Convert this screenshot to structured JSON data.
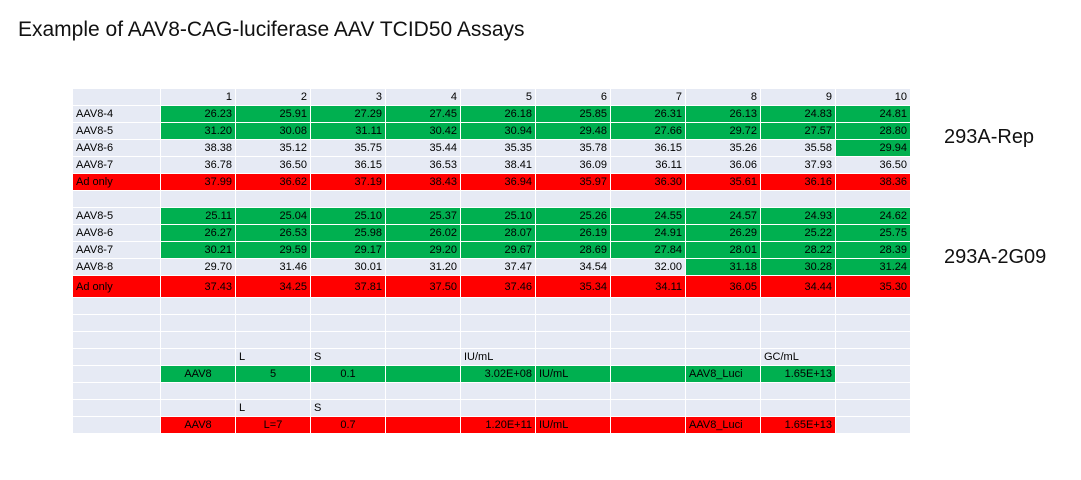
{
  "title": "Example of AAV8-CAG-luciferase AAV TCID50 Assays",
  "labels": {
    "rep": "293A-Rep",
    "g09": "293A-2G09"
  },
  "columns": [
    "1",
    "2",
    "3",
    "4",
    "5",
    "6",
    "7",
    "8",
    "9",
    "10"
  ],
  "section1": [
    {
      "label": "AAV8-4",
      "values": [
        "26.23",
        "25.91",
        "27.29",
        "27.45",
        "26.18",
        "25.85",
        "26.31",
        "26.13",
        "24.83",
        "24.81"
      ],
      "colors": [
        "g",
        "g",
        "g",
        "g",
        "g",
        "g",
        "g",
        "g",
        "g",
        "g"
      ]
    },
    {
      "label": "AAV8-5",
      "values": [
        "31.20",
        "30.08",
        "31.11",
        "30.42",
        "30.94",
        "29.48",
        "27.66",
        "29.72",
        "27.57",
        "28.80"
      ],
      "colors": [
        "g",
        "g",
        "g",
        "g",
        "g",
        "g",
        "g",
        "g",
        "g",
        "g"
      ]
    },
    {
      "label": "AAV8-6",
      "values": [
        "38.38",
        "35.12",
        "35.75",
        "35.44",
        "35.35",
        "35.78",
        "36.15",
        "35.26",
        "35.58",
        "29.94"
      ],
      "colors": [
        "l",
        "l",
        "l",
        "l",
        "l",
        "l",
        "l",
        "l",
        "l",
        "g"
      ]
    },
    {
      "label": "AAV8-7",
      "values": [
        "36.78",
        "36.50",
        "36.15",
        "36.53",
        "38.41",
        "36.09",
        "36.11",
        "36.06",
        "37.93",
        "36.50"
      ],
      "colors": [
        "l",
        "l",
        "l",
        "l",
        "l",
        "l",
        "l",
        "l",
        "l",
        "l"
      ]
    },
    {
      "label": "Ad only",
      "values": [
        "37.99",
        "36.62",
        "37.19",
        "38.43",
        "36.94",
        "35.97",
        "36.30",
        "35.61",
        "36.16",
        "38.36"
      ],
      "colors": [
        "r",
        "r",
        "r",
        "r",
        "r",
        "r",
        "r",
        "r",
        "r",
        "r"
      ],
      "labelColor": "r"
    }
  ],
  "section2": [
    {
      "label": "AAV8-5",
      "values": [
        "25.11",
        "25.04",
        "25.10",
        "25.37",
        "25.10",
        "25.26",
        "24.55",
        "24.57",
        "24.93",
        "24.62"
      ],
      "colors": [
        "g",
        "g",
        "g",
        "g",
        "g",
        "g",
        "g",
        "g",
        "g",
        "g"
      ]
    },
    {
      "label": "AAV8-6",
      "values": [
        "26.27",
        "26.53",
        "25.98",
        "26.02",
        "28.07",
        "26.19",
        "24.91",
        "26.29",
        "25.22",
        "25.75"
      ],
      "colors": [
        "g",
        "g",
        "g",
        "g",
        "g",
        "g",
        "g",
        "g",
        "g",
        "g"
      ]
    },
    {
      "label": "AAV8-7",
      "values": [
        "30.21",
        "29.59",
        "29.17",
        "29.20",
        "29.67",
        "28.69",
        "27.84",
        "28.01",
        "28.22",
        "28.39"
      ],
      "colors": [
        "g",
        "g",
        "g",
        "g",
        "g",
        "g",
        "g",
        "g",
        "g",
        "g"
      ]
    },
    {
      "label": "AAV8-8",
      "values": [
        "29.70",
        "31.46",
        "30.01",
        "31.20",
        "37.47",
        "34.54",
        "32.00",
        "31.18",
        "30.28",
        "31.24"
      ],
      "colors": [
        "l",
        "l",
        "l",
        "l",
        "l",
        "l",
        "l",
        "g",
        "g",
        "g"
      ]
    },
    {
      "label": "Ad only",
      "values": [
        "37.43",
        "34.25",
        "37.81",
        "37.50",
        "37.46",
        "35.34",
        "34.11",
        "36.05",
        "34.44",
        "35.30"
      ],
      "colors": [
        "r",
        "r",
        "r",
        "r",
        "r",
        "r",
        "r",
        "r",
        "r",
        "r"
      ],
      "labelColor": "r",
      "tall": true
    }
  ],
  "calc_header1": [
    "",
    "",
    "L",
    "S",
    "",
    "IU/mL",
    "",
    "",
    "",
    "GC/mL",
    ""
  ],
  "calc_row1": {
    "cells": [
      "",
      "AAV8",
      "5",
      "0.1",
      "",
      "3.02E+08",
      "IU/mL",
      "",
      "AAV8_Luci",
      "1.65E+13",
      ""
    ],
    "colors": [
      "l",
      "g",
      "g",
      "g",
      "g",
      "g",
      "g",
      "g",
      "g",
      "g",
      "l"
    ]
  },
  "calc_header2": [
    "",
    "",
    "L",
    "S",
    "",
    "",
    "",
    "",
    "",
    "",
    ""
  ],
  "calc_row2": {
    "cells": [
      "",
      "AAV8",
      "L=7",
      "0.7",
      "",
      "1.20E+11",
      "IU/mL",
      "",
      "AAV8_Luci",
      "1.65E+13",
      ""
    ],
    "colors": [
      "l",
      "r",
      "r",
      "r",
      "r",
      "r",
      "r",
      "r",
      "r",
      "r",
      "l"
    ]
  }
}
